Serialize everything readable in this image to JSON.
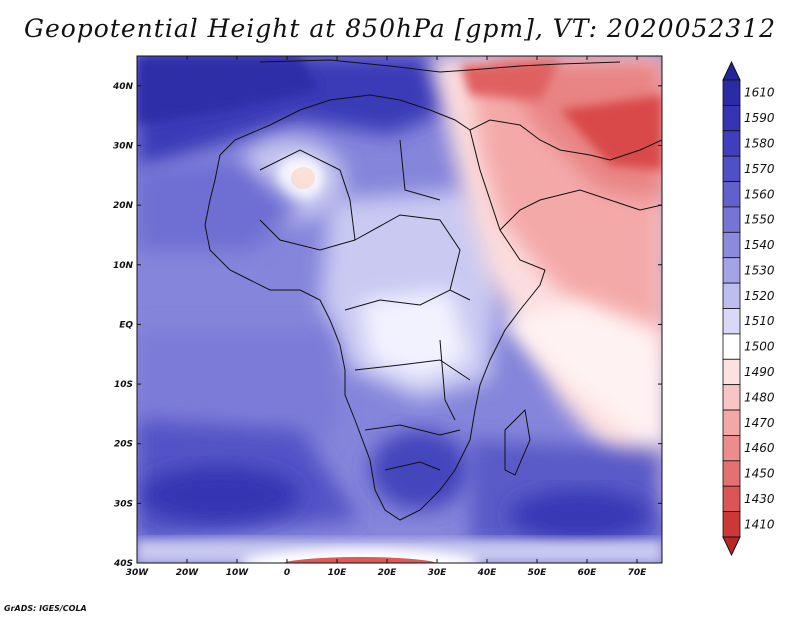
{
  "title": "Geopotential Height at 850hPa [gpm], VT: 2020052312",
  "credit": "GrADS: IGES/COLA",
  "map": {
    "lon_range": [
      -30,
      75
    ],
    "lat_range": [
      -40,
      45
    ],
    "lat_ticks": [
      {
        "value": 40,
        "label": "40N"
      },
      {
        "value": 30,
        "label": "30N"
      },
      {
        "value": 20,
        "label": "20N"
      },
      {
        "value": 10,
        "label": "10N"
      },
      {
        "value": 0,
        "label": "EQ"
      },
      {
        "value": -10,
        "label": "10S"
      },
      {
        "value": -20,
        "label": "20S"
      },
      {
        "value": -30,
        "label": "30S"
      },
      {
        "value": -40,
        "label": "40S"
      }
    ],
    "lon_ticks": [
      {
        "value": -30,
        "label": "30W"
      },
      {
        "value": -20,
        "label": "20W"
      },
      {
        "value": -10,
        "label": "10W"
      },
      {
        "value": 0,
        "label": "0"
      },
      {
        "value": 10,
        "label": "10E"
      },
      {
        "value": 20,
        "label": "20E"
      },
      {
        "value": 30,
        "label": "30E"
      },
      {
        "value": 40,
        "label": "40E"
      },
      {
        "value": 50,
        "label": "50E"
      },
      {
        "value": 60,
        "label": "60E"
      },
      {
        "value": 70,
        "label": "70E"
      }
    ]
  },
  "colorbar": {
    "levels": [
      {
        "label": "1610",
        "color": "#2b2ba6"
      },
      {
        "label": "1590",
        "color": "#3434b4"
      },
      {
        "label": "1580",
        "color": "#3f3fbd"
      },
      {
        "label": "1570",
        "color": "#4f4fc6"
      },
      {
        "label": "1560",
        "color": "#6161ce"
      },
      {
        "label": "1550",
        "color": "#7575d6"
      },
      {
        "label": "1540",
        "color": "#8b8bde"
      },
      {
        "label": "1530",
        "color": "#a3a3e6"
      },
      {
        "label": "1520",
        "color": "#bdbdef"
      },
      {
        "label": "1510",
        "color": "#d9d9f7"
      },
      {
        "label": "1500",
        "color": "#ffffff"
      },
      {
        "label": "1490",
        "color": "#fde0e0"
      },
      {
        "label": "1480",
        "color": "#f8c4c4"
      },
      {
        "label": "1470",
        "color": "#f3a8a8"
      },
      {
        "label": "1460",
        "color": "#ec8c8c"
      },
      {
        "label": "1450",
        "color": "#e57070"
      },
      {
        "label": "1430",
        "color": "#dc5454"
      },
      {
        "label": "1410",
        "color": "#cc3838"
      }
    ],
    "top_arrow_color": "#24249a",
    "bottom_arrow_color": "#b82828"
  }
}
